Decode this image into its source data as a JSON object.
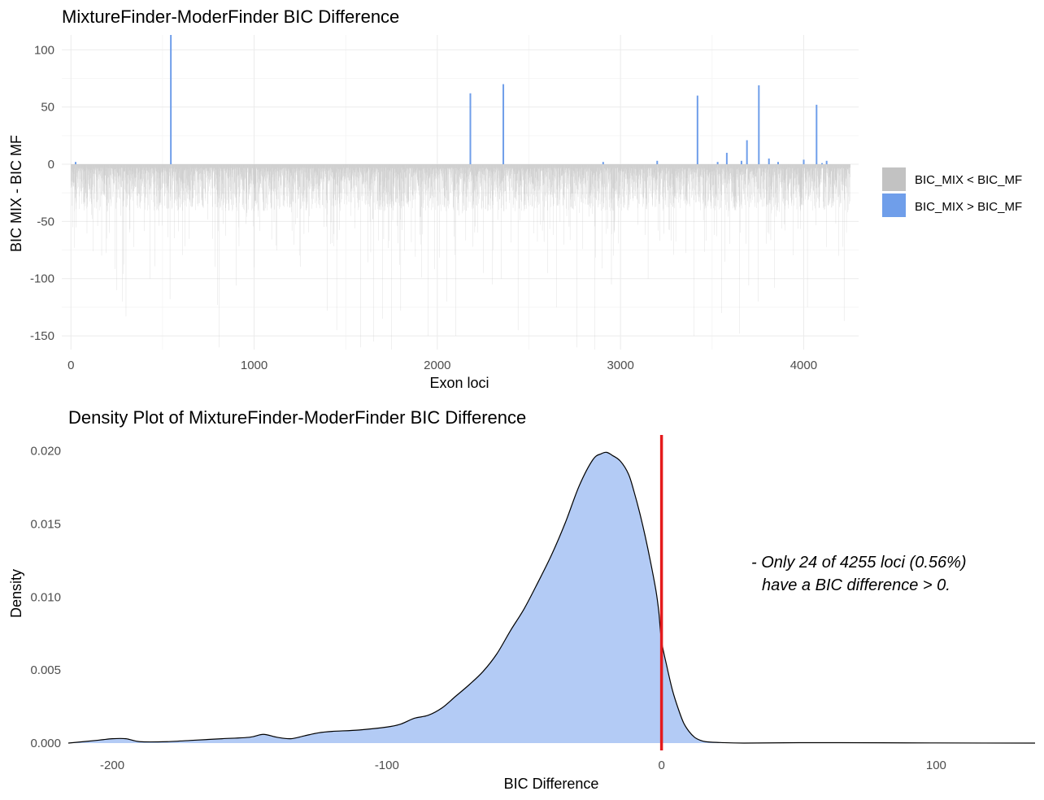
{
  "chart_data": [
    {
      "type": "bar",
      "title": "MixtureFinder-ModerFinder BIC Difference",
      "xlabel": "Exon loci",
      "ylabel": "BIC MIX - BIC MF",
      "xlim": [
        -50,
        4300
      ],
      "ylim": [
        -162,
        113
      ],
      "x_ticks": [
        0,
        1000,
        2000,
        3000,
        4000
      ],
      "y_ticks": [
        -150,
        -100,
        -50,
        0,
        50,
        100
      ],
      "grid": true,
      "legend_position": "right",
      "legend": [
        {
          "label": "BIC_MIX < BIC_MF",
          "color": "#c2c2c2"
        },
        {
          "label": "BIC_MIX > BIC_MF",
          "color": "#6f9eea"
        }
      ],
      "n_loci": 4255,
      "positive_bars": [
        {
          "x": 25,
          "value": 2
        },
        {
          "x": 545,
          "value": 115
        },
        {
          "x": 2180,
          "value": 62
        },
        {
          "x": 2360,
          "value": 70
        },
        {
          "x": 2905,
          "value": 2
        },
        {
          "x": 3200,
          "value": 3
        },
        {
          "x": 3420,
          "value": 60
        },
        {
          "x": 3530,
          "value": 2
        },
        {
          "x": 3580,
          "value": 10
        },
        {
          "x": 3660,
          "value": 3
        },
        {
          "x": 3690,
          "value": 21
        },
        {
          "x": 3755,
          "value": 69
        },
        {
          "x": 3810,
          "value": 5
        },
        {
          "x": 3860,
          "value": 2
        },
        {
          "x": 4000,
          "value": 4
        },
        {
          "x": 4070,
          "value": 52
        },
        {
          "x": 4100,
          "value": 1
        },
        {
          "x": 4125,
          "value": 3
        }
      ],
      "negative_extremes": [
        {
          "x": 10,
          "value": -55
        },
        {
          "x": 20,
          "value": -73
        },
        {
          "x": 210,
          "value": -60
        },
        {
          "x": 250,
          "value": -110
        },
        {
          "x": 280,
          "value": -120
        },
        {
          "x": 300,
          "value": -133
        },
        {
          "x": 430,
          "value": -100
        },
        {
          "x": 540,
          "value": -118
        },
        {
          "x": 800,
          "value": -123
        },
        {
          "x": 810,
          "value": -160
        },
        {
          "x": 900,
          "value": -106
        },
        {
          "x": 1000,
          "value": -90
        },
        {
          "x": 1400,
          "value": -128
        },
        {
          "x": 1450,
          "value": -145
        },
        {
          "x": 1580,
          "value": -160
        },
        {
          "x": 1650,
          "value": -155
        },
        {
          "x": 1700,
          "value": -135
        },
        {
          "x": 1750,
          "value": -162
        },
        {
          "x": 1800,
          "value": -128
        },
        {
          "x": 1950,
          "value": -150
        },
        {
          "x": 2050,
          "value": -120
        },
        {
          "x": 2100,
          "value": -150
        },
        {
          "x": 2250,
          "value": -95
        },
        {
          "x": 2300,
          "value": -105
        },
        {
          "x": 2350,
          "value": -100
        },
        {
          "x": 2440,
          "value": -145
        },
        {
          "x": 2650,
          "value": -125
        },
        {
          "x": 2760,
          "value": -160
        },
        {
          "x": 2860,
          "value": -162
        },
        {
          "x": 2950,
          "value": -105
        },
        {
          "x": 3150,
          "value": -100
        },
        {
          "x": 3400,
          "value": -150
        },
        {
          "x": 3550,
          "value": -130
        },
        {
          "x": 3650,
          "value": -148
        },
        {
          "x": 3700,
          "value": -106
        },
        {
          "x": 3750,
          "value": -120
        },
        {
          "x": 3840,
          "value": -108
        },
        {
          "x": 3860,
          "value": -133
        },
        {
          "x": 4020,
          "value": -125
        },
        {
          "x": 4190,
          "value": -80
        },
        {
          "x": 4220,
          "value": -137
        },
        {
          "x": 4240,
          "value": -42
        }
      ]
    },
    {
      "type": "area",
      "title": "Density Plot of MixtureFinder-ModerFinder BIC Difference",
      "xlabel": "BIC Difference",
      "ylabel": "Density",
      "xlim": [
        -216,
        136
      ],
      "ylim": [
        -0.0005,
        0.0212
      ],
      "x_ticks": [
        -200,
        -100,
        0,
        100
      ],
      "y_ticks": [
        0.0,
        0.005,
        0.01,
        0.015,
        0.02
      ],
      "y_tick_labels": [
        "0.000",
        "0.005",
        "0.010",
        "0.015",
        "0.020"
      ],
      "grid": false,
      "fill_color": "#b3cbf5",
      "line_color": "#000000",
      "vline": {
        "x": 0,
        "color": "#e41a1c"
      },
      "annotation": [
        "- Only 24 of 4255 loci (0.56%)",
        "have a BIC difference > 0."
      ],
      "x": [
        -216,
        -205,
        -200,
        -195,
        -190,
        -180,
        -170,
        -160,
        -150,
        -145,
        -140,
        -135,
        -130,
        -125,
        -120,
        -110,
        -100,
        -95,
        -90,
        -85,
        -80,
        -75,
        -70,
        -65,
        -60,
        -55,
        -50,
        -45,
        -40,
        -35,
        -30,
        -25,
        -22,
        -20,
        -18,
        -15,
        -12,
        -10,
        -8,
        -6,
        -4,
        -2,
        -1,
        0,
        2,
        4,
        6,
        8,
        10,
        12,
        14,
        16,
        20,
        30,
        50,
        80,
        100,
        136
      ],
      "y": [
        0.0,
        0.0002,
        0.0003,
        0.0003,
        0.0001,
        0.0001,
        0.0002,
        0.0003,
        0.0004,
        0.0006,
        0.0004,
        0.0003,
        0.0005,
        0.0007,
        0.0008,
        0.0009,
        0.0011,
        0.0013,
        0.0017,
        0.0019,
        0.0024,
        0.0032,
        0.004,
        0.0049,
        0.0061,
        0.0077,
        0.0092,
        0.011,
        0.0129,
        0.0151,
        0.0176,
        0.0194,
        0.0198,
        0.0199,
        0.0197,
        0.0193,
        0.0184,
        0.0172,
        0.0158,
        0.0142,
        0.0124,
        0.0104,
        0.009,
        0.007,
        0.0052,
        0.0036,
        0.0024,
        0.0014,
        0.0008,
        0.0004,
        0.0002,
        0.0001,
        5e-05,
        0.0,
        3e-05,
        2e-05,
        1e-05,
        0.0
      ]
    }
  ]
}
